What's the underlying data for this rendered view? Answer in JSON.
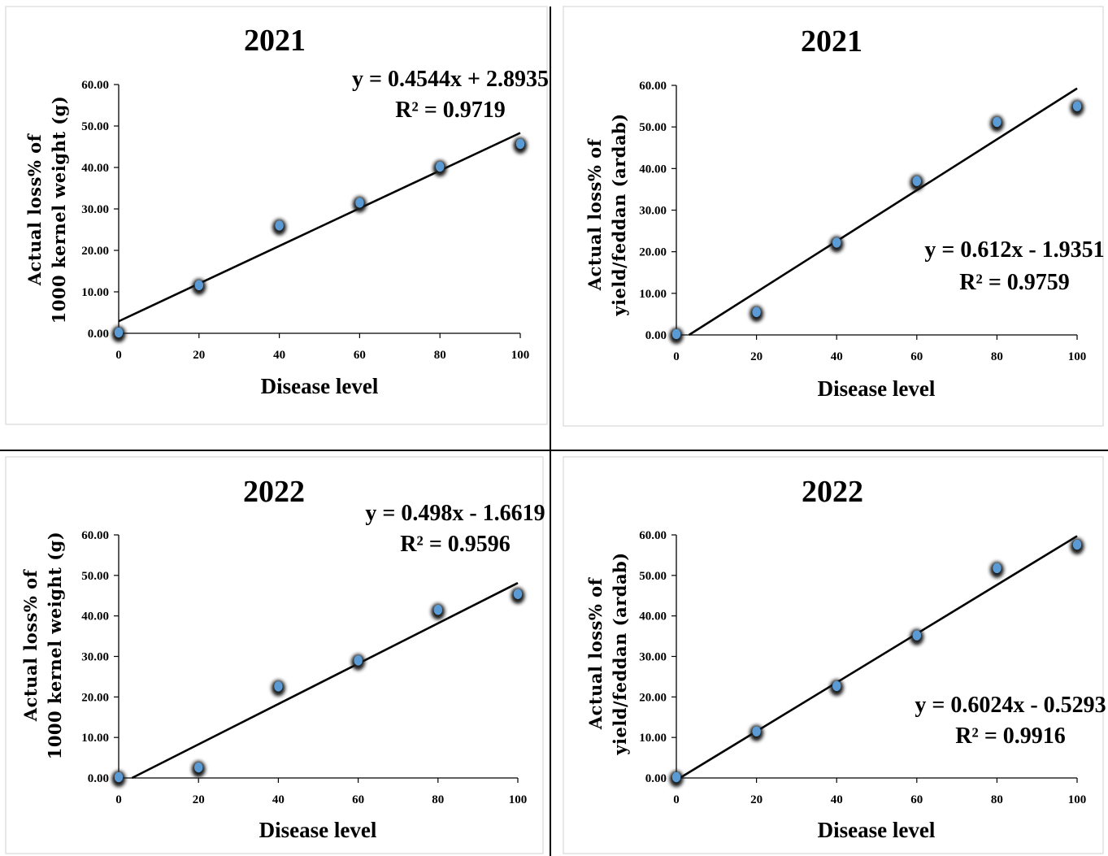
{
  "colors": {
    "marker": "#5b9bd5",
    "marker_shadow": "#1a1a1a",
    "trendline": "#000000",
    "axis": "#000000",
    "panel_border": "#d9d9d9"
  },
  "chart_data": [
    {
      "type": "scatter",
      "title": "2021",
      "xlabel": "Disease level",
      "ylabel": [
        "Actual loss% of",
        "1000 kernel weight (g)"
      ],
      "xlim": [
        0,
        100
      ],
      "ylim": [
        0,
        60
      ],
      "xticks": [
        "0",
        "20",
        "40",
        "60",
        "80",
        "100"
      ],
      "yticks": [
        "0.00",
        "10.00",
        "20.00",
        "30.00",
        "40.00",
        "50.00",
        "60.00"
      ],
      "series": [
        {
          "x": [
            0,
            20,
            40,
            60,
            80,
            100
          ],
          "y": [
            0.0,
            11.4,
            25.8,
            31.3,
            40.0,
            45.5
          ]
        }
      ],
      "trendline": {
        "slope": 0.4544,
        "intercept": 2.8935,
        "equation": "y = 0.4544x + 2.8935",
        "r2": "R² = 0.9719"
      }
    },
    {
      "type": "scatter",
      "title": "2021",
      "xlabel": "Disease level",
      "ylabel": [
        "Actual loss% of",
        "yield/feddan (ardab)"
      ],
      "xlim": [
        0,
        100
      ],
      "ylim": [
        0,
        60
      ],
      "xticks": [
        "0",
        "20",
        "40",
        "60",
        "80",
        "100"
      ],
      "yticks": [
        "0.00",
        "10.00",
        "20.00",
        "30.00",
        "40.00",
        "50.00",
        "60.00"
      ],
      "series": [
        {
          "x": [
            0,
            20,
            40,
            60,
            80,
            100
          ],
          "y": [
            0.0,
            5.3,
            22.0,
            36.8,
            51.0,
            54.8
          ]
        }
      ],
      "trendline": {
        "slope": 0.612,
        "intercept": -1.9351,
        "equation": "y = 0.612x - 1.9351",
        "r2": "R² = 0.9759"
      }
    },
    {
      "type": "scatter",
      "title": "2022",
      "xlabel": "Disease level",
      "ylabel": [
        "Actual loss% of",
        "1000 kernel weight (g)"
      ],
      "xlim": [
        0,
        100
      ],
      "ylim": [
        0,
        60
      ],
      "xticks": [
        "0",
        "20",
        "40",
        "60",
        "80",
        "100"
      ],
      "yticks": [
        "0.00",
        "10.00",
        "20.00",
        "30.00",
        "40.00",
        "50.00",
        "60.00"
      ],
      "series": [
        {
          "x": [
            0,
            20,
            40,
            60,
            80,
            100
          ],
          "y": [
            0.0,
            2.4,
            22.4,
            28.8,
            41.3,
            45.2
          ]
        }
      ],
      "trendline": {
        "slope": 0.498,
        "intercept": -1.6619,
        "equation": "y = 0.498x - 1.6619",
        "r2": "R² = 0.9596"
      }
    },
    {
      "type": "scatter",
      "title": "2022",
      "xlabel": "Disease level",
      "ylabel": [
        "Actual loss% of",
        "yield/feddan (ardab)"
      ],
      "xlim": [
        0,
        100
      ],
      "ylim": [
        0,
        60
      ],
      "xticks": [
        "0",
        "20",
        "40",
        "60",
        "80",
        "100"
      ],
      "yticks": [
        "0.00",
        "10.00",
        "20.00",
        "30.00",
        "40.00",
        "50.00",
        "60.00"
      ],
      "series": [
        {
          "x": [
            0,
            20,
            40,
            60,
            80,
            100
          ],
          "y": [
            0.0,
            11.3,
            22.5,
            35.0,
            51.6,
            57.4
          ]
        }
      ],
      "trendline": {
        "slope": 0.6024,
        "intercept": -0.5293,
        "equation": "y = 0.6024x - 0.5293",
        "r2": "R² = 0.9916"
      }
    }
  ]
}
